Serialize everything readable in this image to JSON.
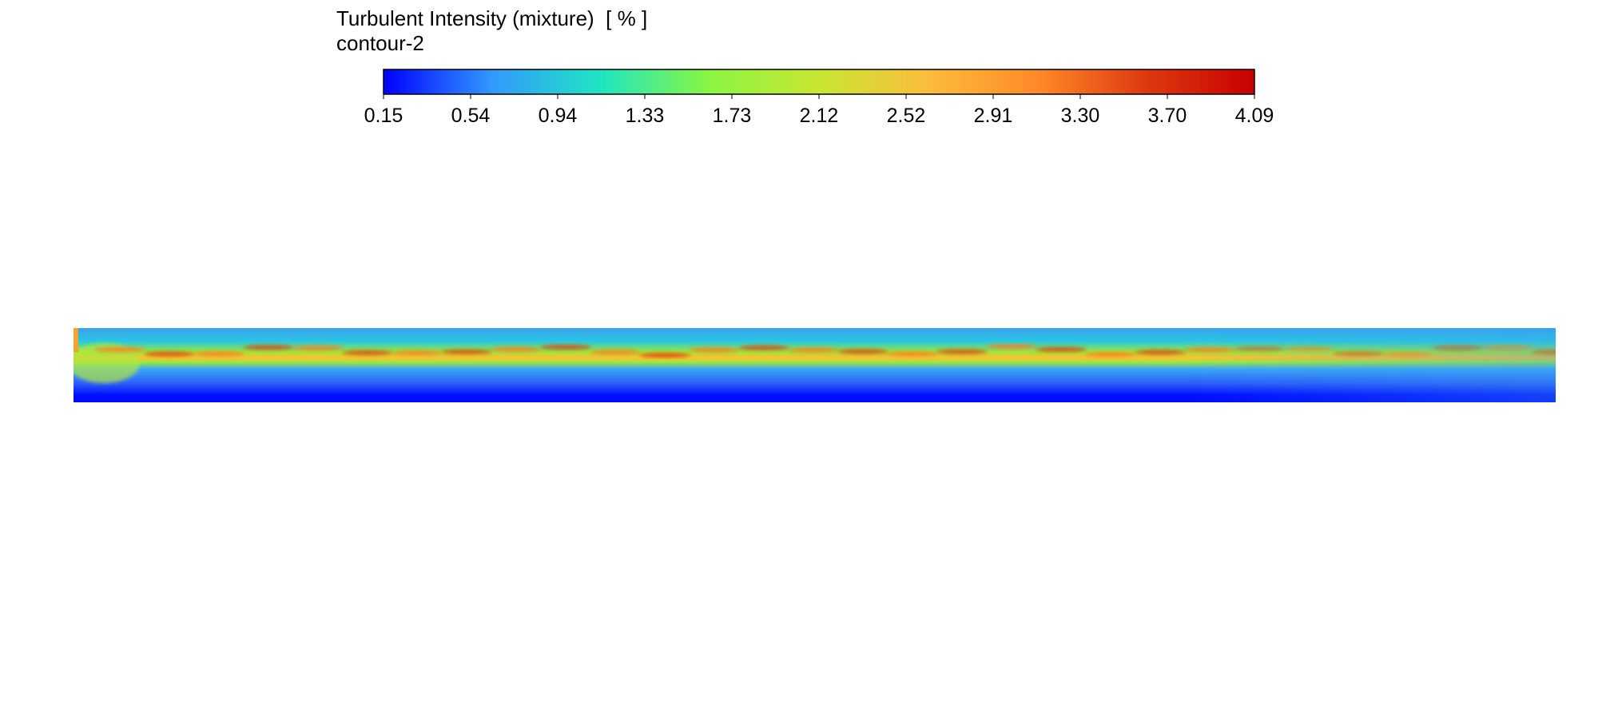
{
  "chart_data": {
    "type": "heatmap",
    "title": "Turbulent Intensity (mixture)  [ % ]",
    "subtitle": "contour-2",
    "colormap": [
      "#0000ff",
      "#3399ff",
      "#1ee6c0",
      "#8cf542",
      "#c8e632",
      "#fbbd3c",
      "#ff8a28",
      "#dd3a10",
      "#c80000"
    ],
    "colorbar": {
      "range": [
        0.15,
        4.09
      ],
      "ticks": [
        "0.15",
        "0.54",
        "0.94",
        "1.33",
        "1.73",
        "2.12",
        "2.52",
        "2.91",
        "3.30",
        "3.70",
        "4.09"
      ],
      "orientation": "horizontal",
      "placement": "top"
    }
  }
}
